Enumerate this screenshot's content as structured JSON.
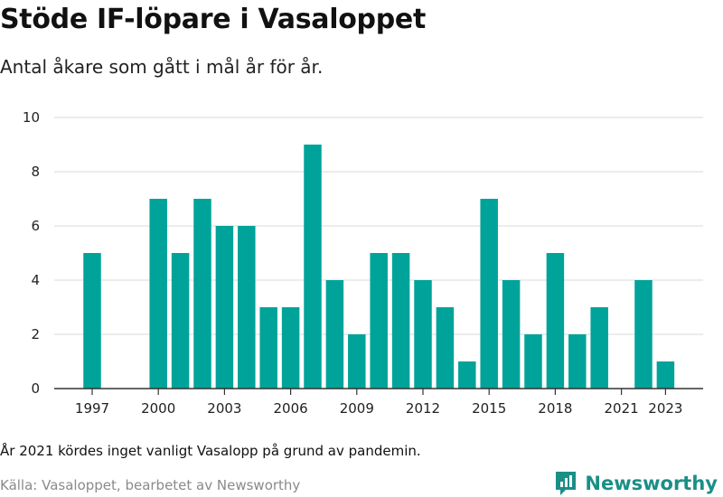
{
  "header": {
    "title": "Stöde IF-löpare i Vasaloppet",
    "subtitle": "Antal åkare som gått i mål år för år."
  },
  "footer": {
    "note": "År 2021 kördes inget vanligt Vasalopp på grund av pandemin.",
    "source": "Källa: Vasaloppet, bearbetet av Newsworthy",
    "brand": "Newsworthy",
    "brand_icon": "newsworthy-logo-icon"
  },
  "colors": {
    "bar": "#00a39a",
    "grid": "#d9d9d9",
    "brand": "#1a8f86"
  },
  "chart_data": {
    "type": "bar",
    "title": "Stöde IF-löpare i Vasaloppet",
    "subtitle": "Antal åkare som gått i mål år för år.",
    "x": [
      1997,
      1998,
      1999,
      2000,
      2001,
      2002,
      2003,
      2004,
      2005,
      2006,
      2007,
      2008,
      2009,
      2010,
      2011,
      2012,
      2013,
      2014,
      2015,
      2016,
      2017,
      2018,
      2019,
      2020,
      2021,
      2022,
      2023
    ],
    "values": [
      5,
      null,
      null,
      7,
      5,
      7,
      6,
      6,
      3,
      3,
      9,
      4,
      2,
      5,
      5,
      4,
      3,
      1,
      7,
      4,
      2,
      5,
      2,
      3,
      null,
      4,
      1
    ],
    "x_ticks": [
      1997,
      2000,
      2003,
      2006,
      2009,
      2012,
      2015,
      2018,
      2021,
      2023
    ],
    "y_ticks": [
      0,
      2,
      4,
      6,
      8,
      10
    ],
    "ylim": [
      0,
      10
    ],
    "xlabel": "",
    "ylabel": "",
    "grid": true
  }
}
